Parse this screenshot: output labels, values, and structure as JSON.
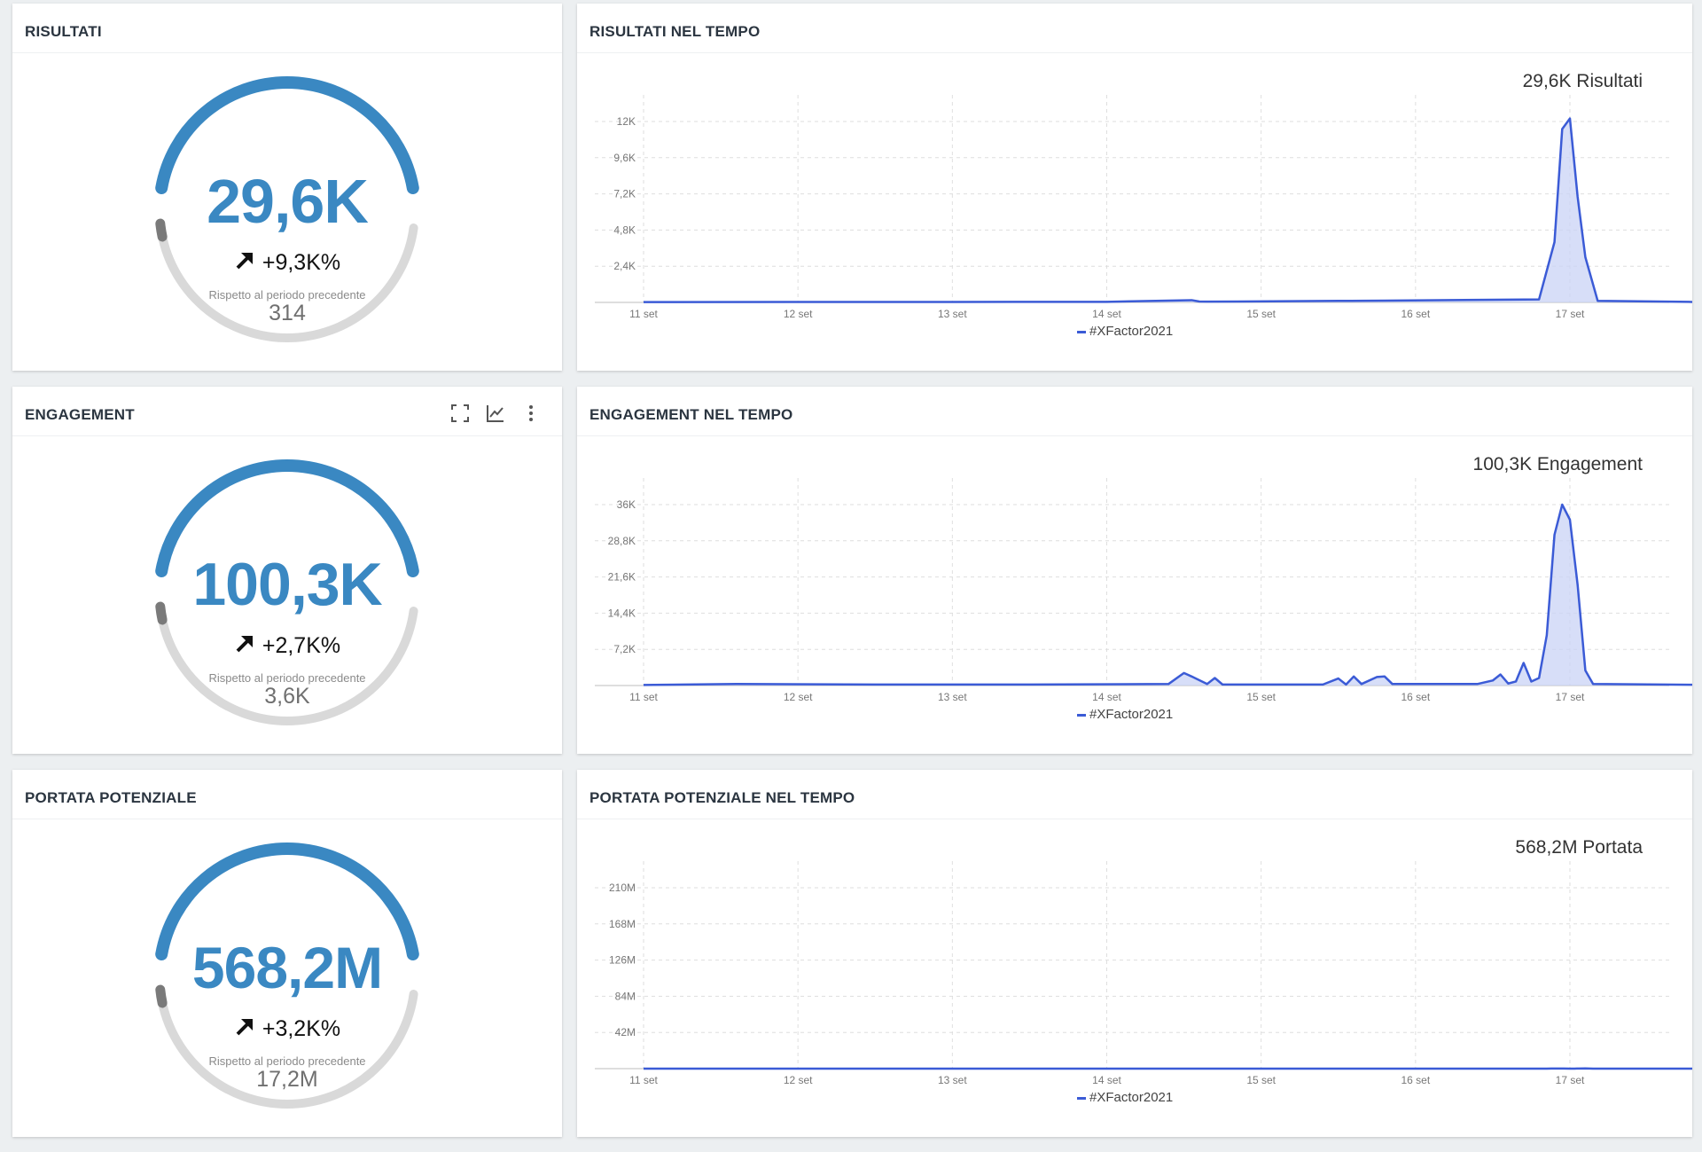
{
  "panels": {
    "risultati": {
      "title": "RISULTATI",
      "value": "29,6K",
      "delta": "+9,3K%",
      "compare_label": "Rispetto al periodo precedente",
      "previous": "314"
    },
    "engagement": {
      "title": "ENGAGEMENT",
      "value": "100,3K",
      "delta": "+2,7K%",
      "compare_label": "Rispetto al periodo precedente",
      "previous": "3,6K",
      "tools": [
        "fullscreen-icon",
        "line-chart-icon",
        "more-vert-icon"
      ]
    },
    "portata": {
      "title": "PORTATA POTENZIALE",
      "value": "568,2M",
      "delta": "+3,2K%",
      "compare_label": "Rispetto al periodo precedente",
      "previous": "17,2M"
    },
    "risultati_tempo": {
      "title": "RISULTATI NEL TEMPO",
      "total": "29,6K Risultati"
    },
    "engagement_tempo": {
      "title": "ENGAGEMENT NEL TEMPO",
      "total": "100,3K Engagement"
    },
    "portata_tempo": {
      "title": "PORTATA POTENZIALE NEL TEMPO",
      "total": "568,2M Portata"
    }
  },
  "colors": {
    "gauge_arc": "#3a88c2",
    "gauge_track": "#d9d9d9",
    "gauge_marker": "#7a7a7a",
    "series_line": "#3b5bd6",
    "series_fill": "#c9d3f5"
  },
  "chart_data": [
    {
      "type": "area",
      "x_range_days": [
        11,
        18
      ],
      "x": [
        11,
        12,
        13,
        14,
        14.55,
        14.6,
        14.65,
        15.5,
        15.8,
        16.8,
        16.9,
        16.95,
        17.0,
        17.05,
        17.1,
        17.18,
        18
      ],
      "series": [
        {
          "name": "#XFactor2021",
          "values": [
            20,
            30,
            30,
            40,
            150,
            60,
            50,
            100,
            120,
            200,
            4000,
            11500,
            12200,
            7000,
            3000,
            100,
            10
          ]
        }
      ],
      "xticks": [
        "11 set",
        "12 set",
        "13 set",
        "14 set",
        "15 set",
        "16 set",
        "17 set"
      ],
      "yticks": [
        "2,4K",
        "4,8K",
        "7,2K",
        "9,6K",
        "12K"
      ],
      "ytick_values": [
        2400,
        4800,
        7200,
        9600,
        12000
      ],
      "ylim": [
        0,
        12000
      ],
      "legend": "bottom-center",
      "grid": true
    },
    {
      "type": "area",
      "x_range_days": [
        11,
        18
      ],
      "x": [
        11,
        11.6,
        12.5,
        13.5,
        14.4,
        14.5,
        14.55,
        14.65,
        14.7,
        14.75,
        15.4,
        15.5,
        15.55,
        15.6,
        15.65,
        15.75,
        15.8,
        15.85,
        16.4,
        16.5,
        16.55,
        16.6,
        16.65,
        16.7,
        16.75,
        16.8,
        16.85,
        16.9,
        16.95,
        17.0,
        17.05,
        17.1,
        17.15,
        18
      ],
      "series": [
        {
          "name": "#XFactor2021",
          "values": [
            100,
            300,
            200,
            200,
            300,
            2500,
            1800,
            300,
            1500,
            200,
            200,
            1400,
            200,
            1800,
            300,
            1700,
            1800,
            300,
            300,
            1000,
            2200,
            400,
            800,
            4500,
            800,
            1500,
            10000,
            30000,
            36000,
            33000,
            20000,
            3000,
            300,
            100
          ]
        }
      ],
      "xticks": [
        "11 set",
        "12 set",
        "13 set",
        "14 set",
        "15 set",
        "16 set",
        "17 set"
      ],
      "yticks": [
        "7,2K",
        "14,4K",
        "21,6K",
        "28,8K",
        "36K"
      ],
      "ytick_values": [
        7200,
        14400,
        21600,
        28800,
        36000
      ],
      "ylim": [
        0,
        36000
      ],
      "legend": "bottom-center",
      "grid": true
    },
    {
      "type": "area",
      "x_range_days": [
        11,
        18
      ],
      "x": [
        11,
        11.6,
        12.6,
        13.5,
        14.4,
        14.48,
        14.55,
        14.7,
        14.8,
        14.9,
        15.5,
        15.6,
        15.65,
        16.4,
        16.55,
        16.65,
        16.7,
        16.75,
        16.8,
        16.85,
        16.88,
        16.92,
        16.96,
        17.0,
        17.03,
        17.06,
        17.1,
        17.15,
        18
      ],
      "series": [
        {
          "name": "#XFactor2021",
          "values": [
            300,
            800,
            600,
            600,
            1000,
            6000,
            3000,
            1200,
            2200,
            800,
            3000,
            1000,
            3500,
            1200,
            3000,
            4500,
            9000,
            6000,
            14000,
            28000,
            90000,
            98000,
            96000,
            55000,
            50000,
            120000,
            205000,
            2000,
            200
          ]
        }
      ],
      "xticks": [
        "11 set",
        "12 set",
        "13 set",
        "14 set",
        "15 set",
        "16 set",
        "17 set"
      ],
      "yticks": [
        "42M",
        "84M",
        "126M",
        "168M",
        "210M"
      ],
      "ytick_values": [
        42000000,
        84000000,
        126000000,
        168000000,
        210000000
      ],
      "ylim": [
        0,
        210000000
      ],
      "legend": "bottom-center",
      "grid": true
    }
  ]
}
